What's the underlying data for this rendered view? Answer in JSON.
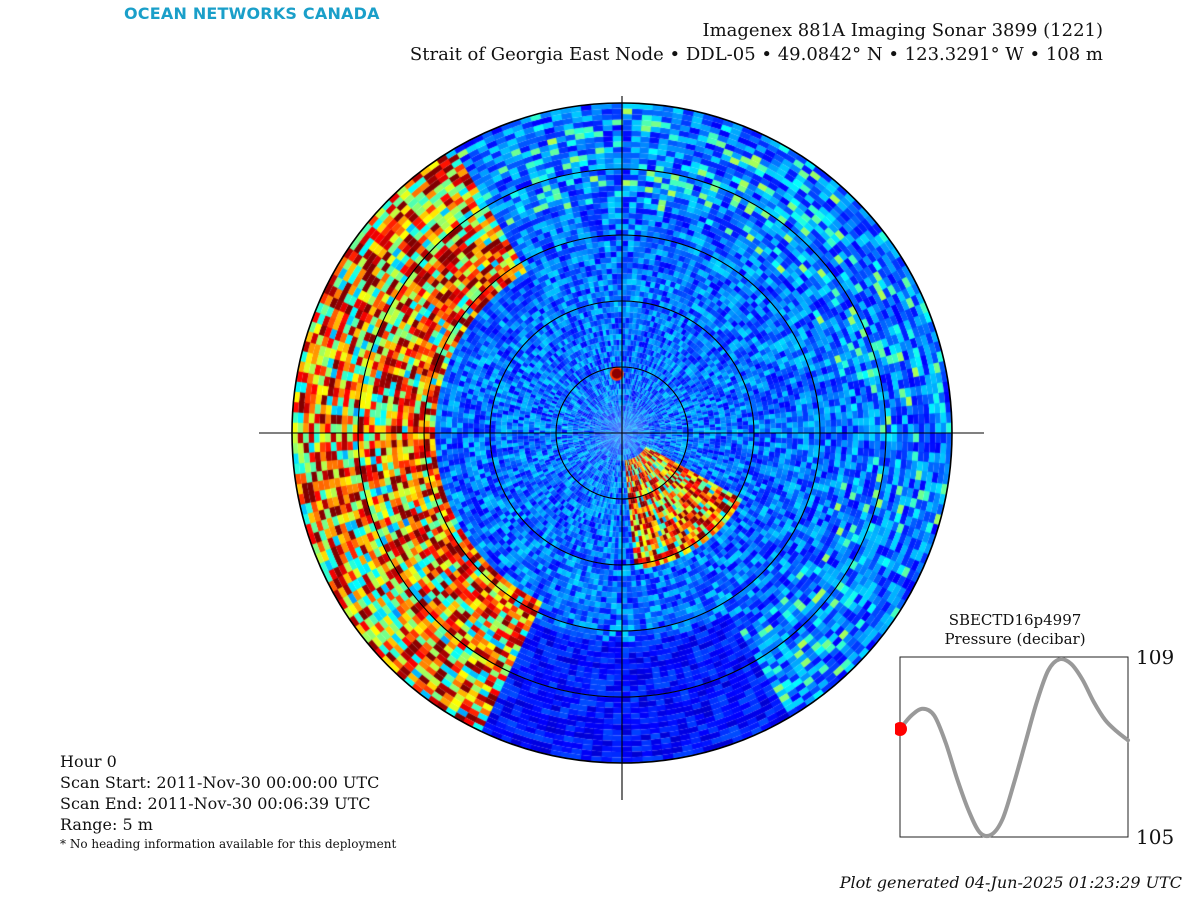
{
  "header": {
    "logo_text": "OCEAN NETWORKS CANADA",
    "logo_color": "#1a9fc9",
    "title": "Imagenex 881A Imaging Sonar 3899 (1221)",
    "subtitle": "Strait of Georgia East Node • DDL-05 • 49.0842° N • 123.3291° W • 108 m"
  },
  "info": {
    "hour": "Hour 0",
    "scan_start": "Scan Start: 2011-Nov-30 00:00:00 UTC",
    "scan_end": "Scan End: 2011-Nov-30 00:06:39 UTC",
    "range": "Range: 5 m",
    "note": "* No heading information available for this deployment"
  },
  "footer": {
    "generated": "Plot generated 04-Jun-2025 01:23:29 UTC"
  },
  "chart_data": [
    {
      "type": "heatmap",
      "title": "",
      "projection": "polar",
      "range_m": 5,
      "range_rings_m": [
        1,
        2,
        3,
        4,
        5
      ],
      "colormap": "jet",
      "features": [
        {
          "name": "strong returns",
          "azimuth_deg_range": [
            205,
            330
          ],
          "range_m": [
            2.8,
            5
          ]
        },
        {
          "name": "strong returns",
          "azimuth_deg_range": [
            118,
            175
          ],
          "range_m": [
            0.4,
            2.1
          ]
        },
        {
          "name": "bright target",
          "azimuth_deg": 355,
          "range_m": 0.9
        }
      ]
    },
    {
      "type": "line",
      "title": "SBECTD16p4997",
      "subtitle": "Pressure (decibar)",
      "ylim": [
        105,
        109
      ],
      "yticks": [
        105,
        109
      ],
      "series": [
        {
          "name": "",
          "color": "#999999",
          "x": [
            0,
            0.05,
            0.1,
            0.15,
            0.2,
            0.25,
            0.3,
            0.35,
            0.4,
            0.45,
            0.5,
            0.55,
            0.6,
            0.65,
            0.7,
            0.75,
            0.8,
            0.85,
            0.9,
            0.95,
            1.0
          ],
          "values": [
            107.4,
            107.7,
            107.85,
            107.7,
            107.1,
            106.3,
            105.6,
            105.1,
            105.05,
            105.4,
            106.2,
            107.1,
            108.0,
            108.7,
            108.95,
            108.85,
            108.5,
            108.0,
            107.6,
            107.35,
            107.15
          ]
        }
      ],
      "marker": {
        "x": 0,
        "value": 107.4,
        "color": "#ff0000"
      }
    }
  ]
}
